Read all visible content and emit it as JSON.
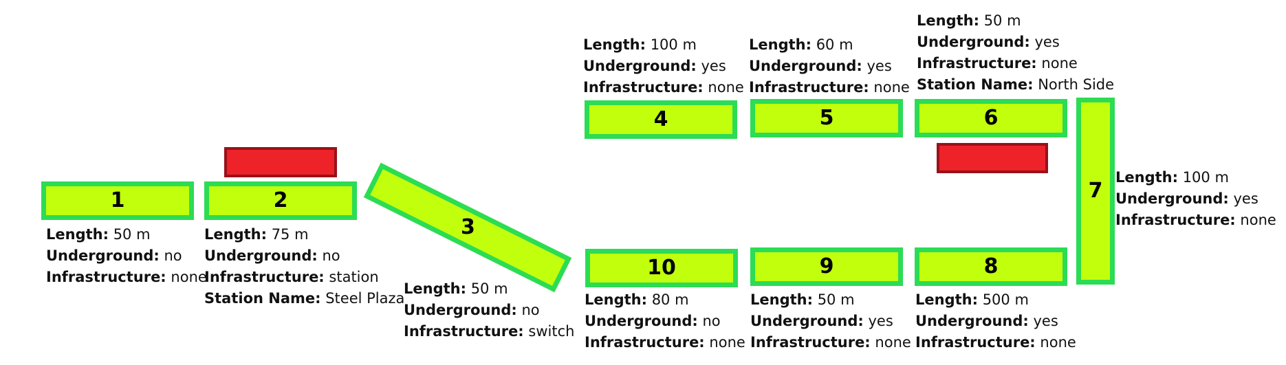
{
  "colors": {
    "segment_fill": "#c2ff0d",
    "segment_border": "#2bdc54",
    "station_marker_fill": "#ee2229",
    "station_marker_border": "#98121a"
  },
  "field_labels": {
    "length": "Length:",
    "underground": "Underground:",
    "infrastructure": "Infrastructure:",
    "station_name": "Station Name:"
  },
  "segments": [
    {
      "id": "1",
      "length": "50 m",
      "underground": "no",
      "infrastructure": "none"
    },
    {
      "id": "2",
      "length": "75 m",
      "underground": "no",
      "infrastructure": "station",
      "station_name": "Steel Plaza"
    },
    {
      "id": "3",
      "length": "50 m",
      "underground": "no",
      "infrastructure": "switch"
    },
    {
      "id": "4",
      "length": "100 m",
      "underground": "yes",
      "infrastructure": "none"
    },
    {
      "id": "5",
      "length": "60 m",
      "underground": "yes",
      "infrastructure": "none"
    },
    {
      "id": "6",
      "length": "50 m",
      "underground": "yes",
      "infrastructure": "none",
      "station_name": "North Side"
    },
    {
      "id": "7",
      "length": "100 m",
      "underground": "yes",
      "infrastructure": "none"
    },
    {
      "id": "8",
      "length": "500 m",
      "underground": "yes",
      "infrastructure": "none"
    },
    {
      "id": "9",
      "length": "50 m",
      "underground": "yes",
      "infrastructure": "none"
    },
    {
      "id": "10",
      "length": "80 m",
      "underground": "no",
      "infrastructure": "none"
    }
  ]
}
